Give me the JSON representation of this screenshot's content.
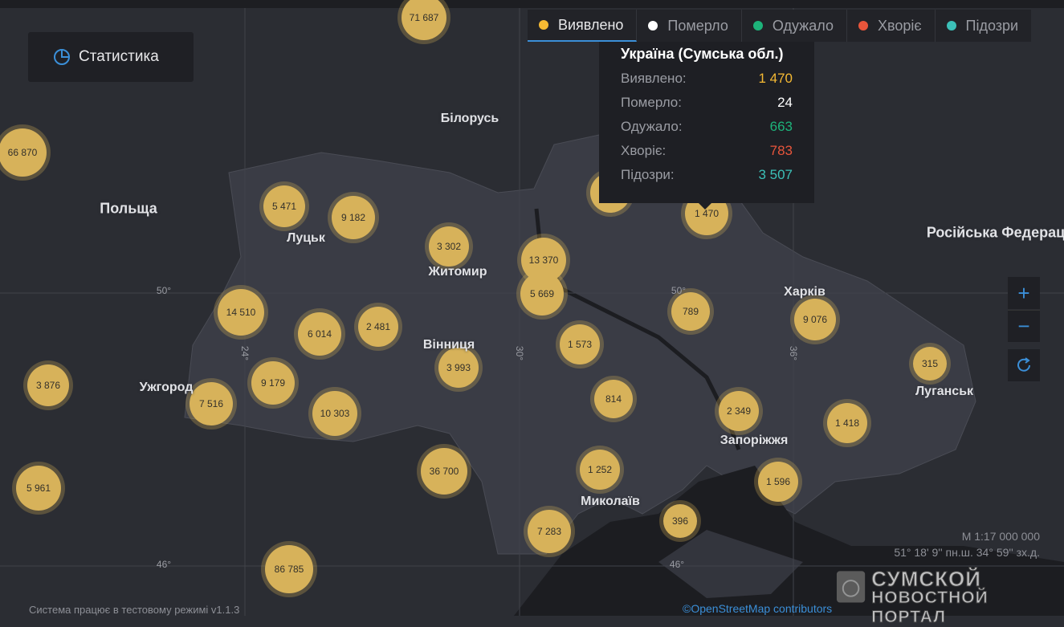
{
  "stat_button": {
    "label": "Статистика",
    "icon": "pie-chart-icon"
  },
  "tabs": [
    {
      "label": "Виявлено",
      "color": "#f5b933",
      "active": true
    },
    {
      "label": "Померло",
      "color": "#ffffff"
    },
    {
      "label": "Одужало",
      "color": "#1db37a"
    },
    {
      "label": "Хворіє",
      "color": "#e8553b"
    },
    {
      "label": "Підозри",
      "color": "#3cc0b8"
    }
  ],
  "tooltip": {
    "title": "Україна (Сумська обл.)",
    "rows": [
      {
        "label": "Виявлено:",
        "value": "1 470",
        "color": "#f5b933"
      },
      {
        "label": "Померло:",
        "value": "24",
        "color": "#ffffff"
      },
      {
        "label": "Одужало:",
        "value": "663",
        "color": "#1db37a"
      },
      {
        "label": "Хворіє:",
        "value": "783",
        "color": "#e8553b"
      },
      {
        "label": "Підозри:",
        "value": "3 507",
        "color": "#3cc0b8"
      }
    ]
  },
  "clusters": [
    "71 687",
    "66 870",
    "5 471",
    "9 182",
    "3 302",
    "13 370",
    "5 669",
    "14 510",
    "6 014",
    "2 481",
    "1 573",
    "789",
    "9 076",
    "315",
    "3 876",
    "7 516",
    "9 179",
    "10 303",
    "3 993",
    "814",
    "2 349",
    "1 418",
    "36 700",
    "1 252",
    "1 596",
    "5 961",
    "7 283",
    "396",
    "86 785",
    "",
    "1 470"
  ],
  "places": [
    "Білорусь",
    "Польща",
    "Луцьк",
    "Житомир",
    "Вінниця",
    "Ужгород",
    "Харків",
    "Луганськ",
    "Запоріжжя",
    "Миколаїв",
    "Російська Федерац"
  ],
  "grid_labels": [
    "50°",
    "50°",
    "46°",
    "46°",
    "24°",
    "30°",
    "36°"
  ],
  "zoom_controls": {
    "zoom_in": "+",
    "zoom_out": "−",
    "reset_icon": "refresh-icon"
  },
  "footer": "Система працює в тестовому режимі v1.1.3",
  "scale": {
    "ratio": "М 1:17 000 000",
    "coords": "51° 18' 9'' пн.ш. 34° 59'' зх.д."
  },
  "attribution": "©OpenStreetMap contributors",
  "watermark": {
    "line1": "СУМСКОЙ",
    "line2": "НОВОСТНОЙ ПОРТАЛ"
  }
}
